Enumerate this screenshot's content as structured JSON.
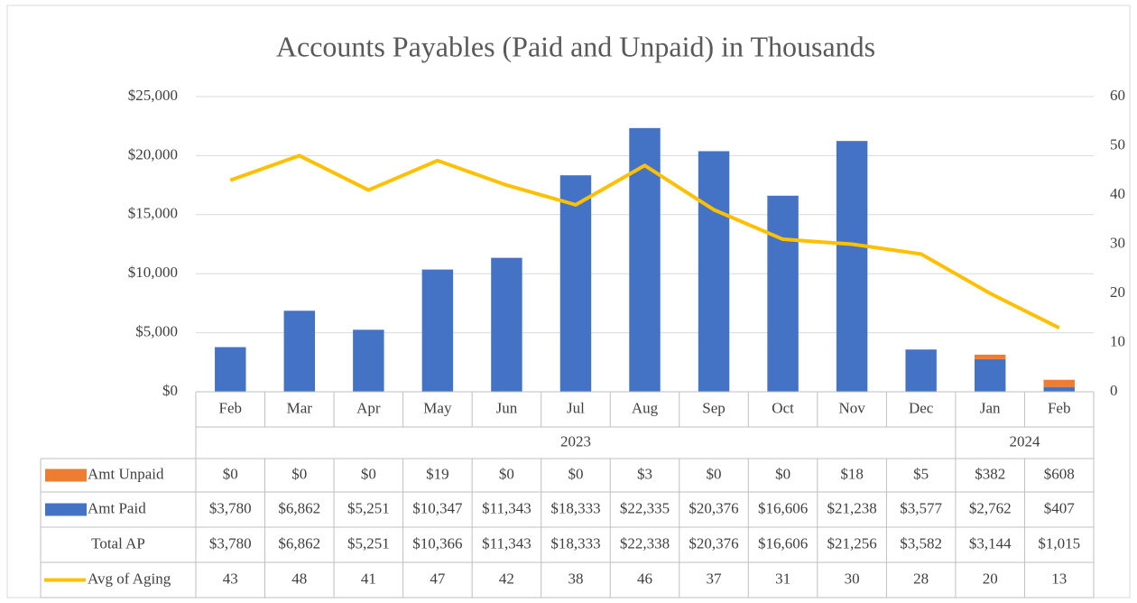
{
  "chart_data": {
    "type": "bar-line-table",
    "title": "Accounts Payables (Paid and Unpaid) in Thousands",
    "categories": [
      "Feb",
      "Mar",
      "Apr",
      "May",
      "Jun",
      "Jul",
      "Aug",
      "Sep",
      "Oct",
      "Nov",
      "Dec",
      "Jan",
      "Feb"
    ],
    "years": [
      "2023",
      "2023",
      "2023",
      "2023",
      "2023",
      "2023",
      "2023",
      "2023",
      "2023",
      "2023",
      "2023",
      "2024",
      "2024"
    ],
    "series": [
      {
        "name": "Amt Unpaid",
        "color": "#ed7d31",
        "stack": true,
        "values": [
          0,
          0,
          0,
          19,
          0,
          0,
          3,
          0,
          0,
          18,
          5,
          382,
          608
        ],
        "value_labels": [
          "$0",
          "$0",
          "$0",
          "$19",
          "$0",
          "$0",
          "$3",
          "$0",
          "$0",
          "$18",
          "$5",
          "$382",
          "$608"
        ]
      },
      {
        "name": "Amt Paid",
        "color": "#4472c4",
        "stack": true,
        "values": [
          3780,
          6862,
          5251,
          10347,
          11343,
          18333,
          22335,
          20376,
          16606,
          21238,
          3577,
          2762,
          407
        ],
        "value_labels": [
          "$3,780",
          "$6,862",
          "$5,251",
          "$10,347",
          "$11,343",
          "$18,333",
          "$22,335",
          "$20,376",
          "$16,606",
          "$21,238",
          "$3,577",
          "$2,762",
          "$407"
        ]
      },
      {
        "name": "Total AP",
        "values": [
          3780,
          6862,
          5251,
          10366,
          11343,
          18333,
          22338,
          20376,
          16606,
          21256,
          3582,
          3144,
          1015
        ],
        "value_labels": [
          "$3,780",
          "$6,862",
          "$5,251",
          "$10,366",
          "$11,343",
          "$18,333",
          "$22,338",
          "$20,376",
          "$16,606",
          "$21,256",
          "$3,582",
          "$3,144",
          "$1,015"
        ]
      },
      {
        "name": "Avg of Aging",
        "color": "#ffc000",
        "axis": "y2",
        "values": [
          43,
          48,
          41,
          47,
          42,
          38,
          46,
          37,
          31,
          30,
          28,
          20,
          13
        ]
      }
    ],
    "ylim": [
      0,
      25000
    ],
    "yticks": [
      {
        "value": 0,
        "label": "$0"
      },
      {
        "value": 5000,
        "label": "$5,000"
      },
      {
        "value": 10000,
        "label": "$10,000"
      },
      {
        "value": 15000,
        "label": "$15,000"
      },
      {
        "value": 20000,
        "label": "$20,000"
      },
      {
        "value": 25000,
        "label": "$25,000"
      }
    ],
    "y2lim": [
      0,
      60
    ],
    "y2ticks": [
      0,
      10,
      20,
      30,
      40,
      50,
      60
    ],
    "grid": true
  }
}
